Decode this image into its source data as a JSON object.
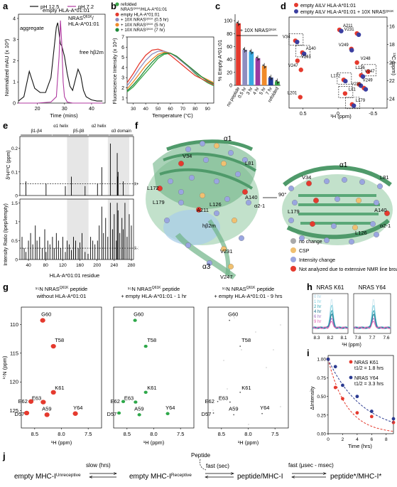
{
  "panels": {
    "a": {
      "label": "a",
      "legend": [
        "pH 12.5",
        "pH 7.2"
      ],
      "peaks": [
        "aggregate",
        "empty HLA-A*01:01",
        "NRAS",
        "HLA-A*01:01",
        "free hβ2m"
      ],
      "peak_nras_sup": "Q61K",
      "peak_nras_tail": "/",
      "ylabel": "Normalized mAU (x 10³)",
      "xlabel": "Time (mins)",
      "yticks": [
        "0",
        "1",
        "2",
        "3",
        "4"
      ],
      "xticks": [
        "20",
        "30",
        "40"
      ],
      "colors": {
        "ph125": "#111111",
        "ph72": "#b03aa0"
      }
    },
    "b": {
      "label": "b",
      "legend": [
        {
          "pre": "refolded",
          "mid": "",
          "post": ""
        },
        {
          "pre": "NRAS",
          "mid": "Q61K",
          "post": "/HLA-A*01:01"
        },
        {
          "pre": "empty HLA-A*01:01",
          "mid": "",
          "post": ""
        },
        {
          "pre": "+ 10X NRAS",
          "mid": "Q61K",
          "post": " (0.5 hr)"
        },
        {
          "pre": "+ 10X NRAS",
          "mid": "Q61K",
          "post": " (5 hr)"
        },
        {
          "pre": "+ 10X NRAS",
          "mid": "Q61K",
          "post": " (7 hr)"
        }
      ],
      "ylabel": "Fluorescence Intensity (x 10⁴)",
      "xlabel": "Temperature (°C)",
      "yticks": [
        "1",
        "2",
        "3",
        "4",
        "5",
        "6",
        "7"
      ],
      "xticks": [
        "30",
        "40",
        "50",
        "60",
        "70",
        "80",
        "90"
      ],
      "colors": [
        "#3aa648",
        "#e53a2e",
        "#8e8ec0",
        "#f08a2a",
        "#1f8a3a"
      ]
    },
    "c": {
      "label": "c",
      "annotation": "+ 10X NRAS",
      "annotation_sup": "Q61K",
      "ylabel": "% Empty A*01:01",
      "yticks": [
        "0",
        "20",
        "40",
        "60",
        "80",
        "100"
      ],
      "categories": [
        "no peptide",
        "0.5 hr",
        "3 hr",
        "4 hr",
        "5 hr",
        "7 hr",
        "refolded"
      ],
      "values": [
        96,
        55,
        52,
        42,
        30,
        12,
        6
      ],
      "colors": [
        "#e53a2e",
        "#8e8ec0",
        "#39a9e0",
        "#9b3aa0",
        "#f08a2a",
        "#1f3a9a",
        "#3aa648"
      ]
    },
    "d": {
      "label": "d",
      "legend": [
        {
          "pre": "empty AILV HLA-A*01:01",
          "sup": "",
          "color": "#e53a2e"
        },
        {
          "pre": "empty AILV HLA-A*01:01 + 10X NRAS",
          "sup": "Q61K",
          "color": "#3b3fa0"
        }
      ],
      "ylabel": "¹³C (ppm)",
      "xlabel": "¹H (ppm)",
      "yticks": [
        "16",
        "18",
        "20",
        "22",
        "24"
      ],
      "xticks": [
        "0.5",
        "0",
        "-0.5"
      ],
      "residues": [
        "V34",
        "A211",
        "V231",
        "A140",
        "V249",
        "V261",
        "V247",
        "V248",
        "L126",
        "V247",
        "L172",
        "V249",
        "V231",
        "L81",
        "L201",
        "L179"
      ]
    },
    "e": {
      "label": "e",
      "domains": [
        "β1-β4",
        "α1 helix",
        "β5-β8",
        "α2 helix",
        "α3 domain"
      ],
      "ylabel_top": "δ¹H¹³C (ppm)",
      "ylabel_bottom": "Intensity Ratio (Ipep/Iempty)",
      "yticks_top": [
        "0",
        "0.1",
        "0.2"
      ],
      "yticks_bottom": [
        "0",
        "0.5",
        "1",
        "1.5"
      ],
      "xticks": [
        "40",
        "80",
        "120",
        "160",
        "200",
        "240",
        "280"
      ],
      "xlabel": "HLA-A*01:01 residue",
      "threshold_top": "x̄+1σ",
      "threshold_bottom": "x̄-1σ"
    },
    "f": {
      "label": "f",
      "left_labels": [
        "α1",
        "V34",
        "L81",
        "L172",
        "L179",
        "L126",
        "A140",
        "α2-1",
        "A211",
        "hβ2m",
        "V231",
        "α3",
        "V247"
      ],
      "right_labels": [
        "α1",
        "V34",
        "L179",
        "L81",
        "A140",
        "L126",
        "α2-1"
      ],
      "rotation": "90°",
      "legend": [
        {
          "text": "no change",
          "color": "#a9a9a9"
        },
        {
          "text": "CSP",
          "color": "#f0c070"
        },
        {
          "text": "Intensity change",
          "color": "#9aa6e0"
        },
        {
          "text": "Not analyzed due to extensive NMR line broadening",
          "color": "#e53a2e"
        }
      ]
    },
    "g": {
      "label": "g",
      "titles": [
        {
          "l1a": "¹⁵N NRAS",
          "l1sup": "Q61K",
          "l1b": " peptide",
          "l2": "without HLA-A*01:01"
        },
        {
          "l1a": "¹⁵N NRAS",
          "l1sup": "Q61K",
          "l1b": " peptide",
          "l2": "+ empty HLA-A*01:01 - 1 hr"
        },
        {
          "l1a": "¹⁵N NRAS",
          "l1sup": "Q61K",
          "l1b": " peptide",
          "l2": "+ empty HLA-A*01:01 - 9 hrs"
        }
      ],
      "ylabel": "¹⁵N (ppm)",
      "xlabel": "¹H (ppm)",
      "yticks": [
        "110",
        "115",
        "120",
        "125"
      ],
      "xticks": [
        "8.5",
        "8.0",
        "7.5"
      ],
      "peaks": [
        "G60",
        "T58",
        "K61",
        "E62",
        "E63",
        "D57",
        "A59",
        "Y64"
      ],
      "colors": [
        "#e53a2e",
        "#2ea84a",
        "#5a5a5a"
      ]
    },
    "h": {
      "label": "h",
      "titles": [
        "NRAS K61",
        "NRAS Y64"
      ],
      "times": [
        "0 hr",
        "1 hr",
        "2 hr",
        "4 hr",
        "6 hr",
        "9 hr"
      ],
      "time_colors": [
        "#cfe8f0",
        "#7ed0e0",
        "#2aa0b0",
        "#1b6f8a",
        "#a070c0",
        "#e060b0"
      ],
      "xticks_left": [
        "8.3",
        "8.2",
        "8.1"
      ],
      "xticks_right": [
        "7.8",
        "7.7",
        "7.6"
      ],
      "xlabel": "¹H (ppm)"
    },
    "i": {
      "label": "i",
      "series": [
        {
          "name": "NRAS K61",
          "thalf": "t1/2 = 1.8 hrs",
          "color": "#e53a2e"
        },
        {
          "name": "NRAS Y64",
          "thalf": "t1/2 = 3.3 hrs",
          "color": "#2a3a90"
        }
      ],
      "ylabel": "ΔIntensity",
      "xlabel": "Time (hrs)",
      "yticks": [
        "0.00",
        "0.25",
        "0.50",
        "0.75",
        "1.00"
      ],
      "xticks": [
        "0",
        "2",
        "4",
        "6",
        "8"
      ]
    },
    "j": {
      "label": "j",
      "states": [
        {
          "base": "empty MHC-I",
          "sup": "Unreceptive"
        },
        {
          "base": "empty MHC-I",
          "sup": "Receptive"
        },
        {
          "base": "peptide/MHC-I",
          "sup": ""
        },
        {
          "base": "peptide*/MHC-I*",
          "sup": ""
        }
      ],
      "rates": [
        "slow (hrs)",
        "fast (sec)",
        "fast (μsec - msec)"
      ],
      "peptide": "Peptide"
    }
  },
  "chart_data": [
    {
      "type": "line",
      "panel": "a",
      "xlabel": "Time (mins)",
      "ylabel": "Normalized mAU (x 10³)",
      "xlim": [
        13,
        45
      ],
      "ylim": [
        0,
        4.2
      ],
      "series": [
        {
          "name": "pH 12.5",
          "x": [
            13,
            15,
            17,
            19,
            21,
            23,
            25,
            26,
            27,
            27.5,
            28,
            28.5,
            29,
            30,
            31,
            32,
            33,
            34,
            35,
            36,
            37,
            38,
            40,
            42,
            44
          ],
          "y": [
            0.1,
            0.3,
            1.5,
            0.7,
            0.5,
            0.5,
            1.2,
            2.4,
            3.6,
            3.8,
            3.3,
            2.8,
            2.7,
            2.2,
            1.4,
            0.8,
            0.6,
            1.1,
            1.6,
            1.3,
            0.6,
            0.3,
            0.15,
            0.1,
            0.1
          ]
        },
        {
          "name": "pH 7.2",
          "x": [
            13,
            20,
            25,
            27,
            28,
            28.5,
            29,
            29.5,
            30,
            31,
            33,
            40,
            44
          ],
          "y": [
            0,
            0,
            0.05,
            0.3,
            2.2,
            3.9,
            2.8,
            1.0,
            0.3,
            0.05,
            0,
            0,
            0
          ]
        }
      ]
    },
    {
      "type": "line",
      "panel": "b",
      "xlabel": "Temperature (°C)",
      "ylabel": "Fluorescence Intensity (x 10⁴)",
      "xlim": [
        25,
        95
      ],
      "ylim": [
        0.5,
        7
      ],
      "x": [
        25,
        30,
        35,
        40,
        45,
        50,
        55,
        60,
        65,
        70,
        75,
        80,
        85,
        90,
        95
      ],
      "series": [
        {
          "name": "refolded NRASQ61K/HLA-A*01:01",
          "values": [
            1.6,
            2.1,
            2.8,
            3.5,
            4.2,
            4.9,
            5.3,
            5.4,
            5.1,
            4.6,
            4.0,
            3.4,
            2.9,
            2.5,
            2.2
          ]
        },
        {
          "name": "empty HLA-A*01:01",
          "values": [
            2.5,
            3.4,
            4.4,
            5.2,
            5.7,
            5.8,
            5.6,
            5.2,
            4.7,
            4.2,
            3.7,
            3.2,
            2.9,
            2.6,
            2.3
          ]
        },
        {
          "name": "+ 10X NRASQ61K (0.5 hr)",
          "values": [
            2.2,
            3.0,
            3.9,
            4.7,
            5.3,
            5.6,
            5.6,
            5.4,
            5.0,
            4.5,
            4.0,
            3.5,
            3.1,
            2.7,
            2.4
          ]
        },
        {
          "name": "+ 10X NRASQ61K (5 hr)",
          "values": [
            1.9,
            2.6,
            3.4,
            4.2,
            4.8,
            5.3,
            5.5,
            5.4,
            5.1,
            4.6,
            4.1,
            3.6,
            3.1,
            2.8,
            2.5
          ]
        },
        {
          "name": "+ 10X NRASQ61K (7 hr)",
          "values": [
            1.7,
            2.3,
            3.0,
            3.8,
            4.5,
            5.1,
            5.4,
            5.4,
            5.1,
            4.6,
            4.1,
            3.6,
            3.1,
            2.7,
            2.4
          ]
        }
      ]
    },
    {
      "type": "bar",
      "panel": "c",
      "categories": [
        "no peptide",
        "0.5 hr",
        "3 hr",
        "4 hr",
        "5 hr",
        "7 hr",
        "refolded"
      ],
      "values": [
        96,
        55,
        52,
        42,
        30,
        12,
        6
      ],
      "ylabel": "% Empty A*01:01",
      "ylim": [
        0,
        110
      ]
    },
    {
      "type": "scatter",
      "panel": "d",
      "xlabel": "¹H (ppm)",
      "ylabel": "¹³C (ppm)",
      "xlim": [
        0.7,
        -0.7
      ],
      "ylim": [
        25,
        15
      ],
      "series": [
        {
          "name": "empty AILV HLA-A*01:01",
          "x": [
            0.61,
            -0.02,
            -0.27,
            0.51,
            -0.19,
            0.58,
            0.53,
            -0.27,
            -0.43,
            -0.33,
            -0.08,
            -0.3,
            -0.37,
            -0.1,
            0.54,
            -0.2
          ],
          "y": [
            17.6,
            16.4,
            16.8,
            18.9,
            18.5,
            19.8,
            20.8,
            20.0,
            21.0,
            21.4,
            21.9,
            22.4,
            22.8,
            23.4,
            23.8,
            24.6
          ]
        },
        {
          "name": "empty AILV HLA-A*01:01 + 10X NRASQ61K",
          "x": [
            0.6,
            -0.03,
            -0.28,
            0.5,
            -0.18,
            -0.34,
            -0.09,
            -0.31,
            -0.38,
            -0.21
          ],
          "y": [
            17.7,
            16.5,
            16.9,
            19.0,
            18.6,
            21.5,
            22.0,
            22.5,
            22.9,
            24.7
          ]
        }
      ]
    },
    {
      "type": "scatter",
      "panel": "i",
      "xlabel": "Time (hrs)",
      "ylabel": "ΔIntensity",
      "xlim": [
        0,
        9
      ],
      "ylim": [
        0,
        1.05
      ],
      "series": [
        {
          "name": "NRAS K61",
          "x": [
            0,
            1,
            2,
            4,
            6,
            9
          ],
          "y": [
            1.0,
            0.62,
            0.47,
            0.28,
            0.23,
            0.15
          ]
        },
        {
          "name": "NRAS Y64",
          "x": [
            0,
            1,
            2,
            4,
            6,
            9
          ],
          "y": [
            1.0,
            0.9,
            0.65,
            0.5,
            0.3,
            0.2
          ]
        }
      ]
    }
  ]
}
